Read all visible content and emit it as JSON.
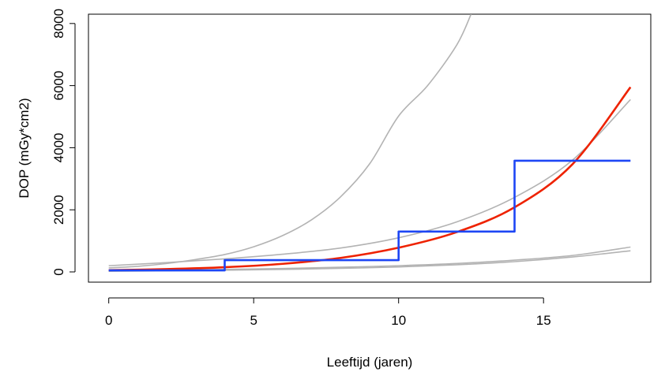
{
  "chart_data": {
    "type": "line",
    "title": "",
    "xlabel": "Leeftijd (jaren)",
    "ylabel": "DOP (mGy*cm2)",
    "xlim": [
      -0.7,
      18.7
    ],
    "ylim": [
      -330,
      8300
    ],
    "x_ticks": [
      "0",
      "5",
      "10",
      "15"
    ],
    "x_tick_values": [
      0,
      5,
      10,
      15
    ],
    "y_ticks": [
      "0",
      "2000",
      "4000",
      "6000",
      "8000"
    ],
    "y_tick_values": [
      0,
      2000,
      4000,
      6000,
      8000
    ],
    "grid": false,
    "box": true,
    "series": [
      {
        "kind": "curve",
        "color": "#b3b3b3",
        "x": [
          0,
          1,
          2,
          3,
          4,
          5,
          6,
          7,
          8,
          9,
          10,
          11,
          12,
          12.5
        ],
        "y": [
          130,
          180,
          270,
          400,
          560,
          810,
          1170,
          1680,
          2420,
          3480,
          5020,
          6000,
          7300,
          8300
        ]
      },
      {
        "kind": "curve",
        "color": "#b3b3b3",
        "x": [
          0,
          2,
          4,
          6,
          8,
          10,
          12,
          14,
          16,
          18
        ],
        "y": [
          200,
          300,
          420,
          570,
          770,
          1100,
          1610,
          2400,
          3600,
          5550
        ]
      },
      {
        "kind": "curve",
        "color": "#b3b3b3",
        "x": [
          0,
          2,
          4,
          6,
          8,
          10,
          12,
          14,
          16,
          18
        ],
        "y": [
          30,
          50,
          80,
          110,
          150,
          200,
          270,
          380,
          530,
          800
        ]
      },
      {
        "kind": "curve",
        "color": "#b3b3b3",
        "x": [
          0,
          2,
          4,
          6,
          8,
          10,
          12,
          14,
          16,
          18
        ],
        "y": [
          20,
          35,
          55,
          80,
          115,
          160,
          230,
          330,
          480,
          680
        ]
      },
      {
        "kind": "curve",
        "color": "#ee2200",
        "x": [
          0,
          2,
          4,
          6,
          8,
          10,
          12,
          14,
          16,
          18
        ],
        "y": [
          55,
          90,
          150,
          260,
          450,
          780,
          1280,
          2080,
          3470,
          5950
        ]
      },
      {
        "kind": "step",
        "color": "#1d46f5",
        "x": [
          0,
          4,
          10,
          14,
          18
        ],
        "y": [
          50,
          380,
          1300,
          3580,
          3580
        ]
      }
    ]
  }
}
